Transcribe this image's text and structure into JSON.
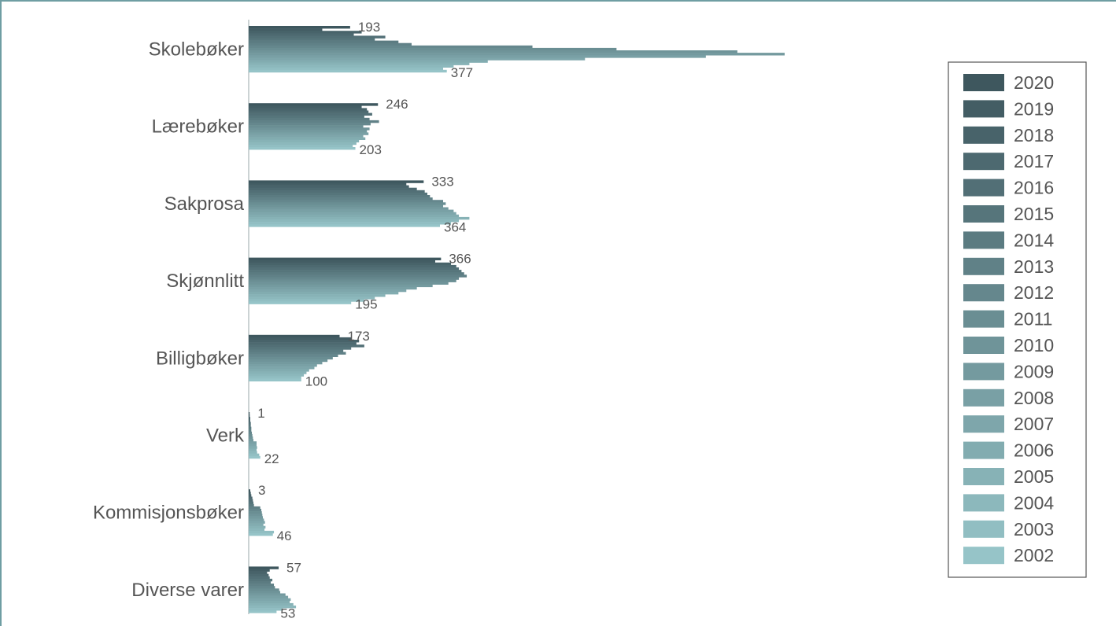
{
  "chart_data": {
    "type": "bar",
    "orientation": "horizontal",
    "categories": [
      "Skolebøker",
      "Lærebøker",
      "Sakprosa",
      "Skjønnlitt",
      "Billigbøker",
      "Verk",
      "Kommisjonsbøker",
      "Diverse varer"
    ],
    "years": [
      "2020",
      "2019",
      "2018",
      "2017",
      "2016",
      "2015",
      "2014",
      "2013",
      "2012",
      "2011",
      "2010",
      "2009",
      "2008",
      "2007",
      "2006",
      "2005",
      "2004",
      "2003",
      "2002"
    ],
    "values": {
      "Skolebøker": [
        193,
        140,
        215,
        200,
        260,
        240,
        285,
        310,
        540,
        700,
        930,
        1020,
        870,
        640,
        455,
        420,
        390,
        370,
        377
      ],
      "Lærebøker": [
        246,
        215,
        225,
        228,
        235,
        220,
        230,
        248,
        232,
        218,
        230,
        225,
        228,
        218,
        222,
        210,
        205,
        198,
        203
      ],
      "Sakprosa": [
        333,
        300,
        305,
        320,
        335,
        340,
        345,
        350,
        370,
        375,
        370,
        380,
        390,
        395,
        400,
        420,
        400,
        385,
        364
      ],
      "Skjønnlitt": [
        366,
        355,
        385,
        395,
        400,
        405,
        410,
        415,
        400,
        395,
        380,
        350,
        320,
        300,
        285,
        260,
        240,
        220,
        195
      ],
      "Billigbøker": [
        173,
        195,
        210,
        205,
        220,
        195,
        180,
        185,
        170,
        160,
        150,
        140,
        130,
        125,
        115,
        110,
        105,
        100,
        100
      ],
      "Verk": [
        1,
        2,
        3,
        3,
        4,
        4,
        5,
        5,
        6,
        7,
        8,
        9,
        15,
        15,
        16,
        15,
        16,
        20,
        22
      ],
      "Kommisjonsbøker": [
        3,
        4,
        5,
        7,
        8,
        9,
        10,
        22,
        24,
        25,
        26,
        27,
        29,
        31,
        28,
        32,
        30,
        48,
        46
      ],
      "Diverse varer": [
        57,
        40,
        35,
        38,
        40,
        45,
        42,
        48,
        50,
        58,
        60,
        70,
        75,
        80,
        78,
        85,
        90,
        65,
        53
      ]
    },
    "first_last_labels": {
      "Skolebøker": [
        "193",
        "377"
      ],
      "Lærebøker": [
        "246",
        "203"
      ],
      "Sakprosa": [
        "333",
        "364"
      ],
      "Skjønnlitt": [
        "366",
        "195"
      ],
      "Billigbøker": [
        "173",
        "100"
      ],
      "Verk": [
        "1",
        "22"
      ],
      "Kommisjonsbøker": [
        "3",
        "46"
      ],
      "Diverse varer": [
        "57",
        "53"
      ]
    },
    "xlim": [
      0,
      1200
    ],
    "grid": false,
    "legend_position": "right",
    "color_dark": "#3e575e",
    "color_light": "#96c4c8"
  }
}
